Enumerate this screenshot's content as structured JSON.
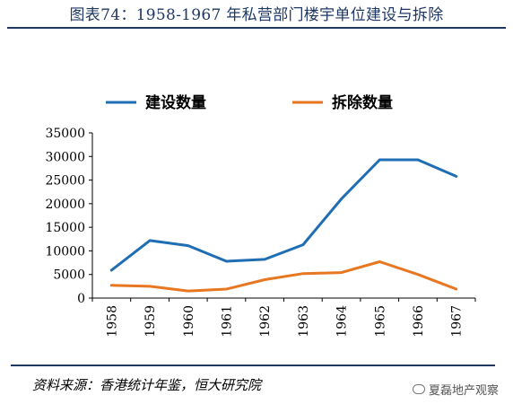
{
  "header": {
    "title": "图表74：1958-1967 年私营部门楼宇单位建设与拆除"
  },
  "footer": {
    "source": "资料来源：香港统计年鉴，恒大研究院",
    "watermark": "夏磊地产观察"
  },
  "chart_data": {
    "type": "line",
    "title": "",
    "xlabel": "",
    "ylabel": "",
    "categories": [
      "1958",
      "1959",
      "1960",
      "1961",
      "1962",
      "1963",
      "1964",
      "1965",
      "1966",
      "1967"
    ],
    "ylim": [
      0,
      35000
    ],
    "yticks": [
      0,
      5000,
      10000,
      15000,
      20000,
      25000,
      30000,
      35000
    ],
    "grid": false,
    "legend_position": "top",
    "series": [
      {
        "name": "建设数量",
        "color": "#1f6eb4",
        "values": [
          5900,
          12200,
          11100,
          7800,
          8200,
          11300,
          21000,
          29300,
          29300,
          25800
        ]
      },
      {
        "name": "拆除数量",
        "color": "#e87722",
        "values": [
          2700,
          2500,
          1500,
          1900,
          3900,
          5200,
          5400,
          7700,
          5000,
          1900
        ]
      }
    ]
  }
}
